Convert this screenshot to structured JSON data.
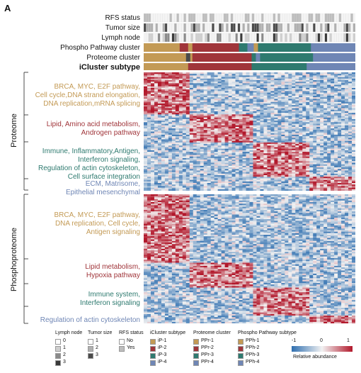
{
  "panel_letter": "A",
  "tracks": [
    {
      "label": "RFS status"
    },
    {
      "label": "Tumor size"
    },
    {
      "label": "Lymph  node"
    },
    {
      "label": "Phospho Pathway cluster"
    },
    {
      "label": "Proteome  cluster"
    },
    {
      "label": "iCluster  subtype"
    }
  ],
  "sections": {
    "proteome": "Proteome",
    "phosphoproteome": "Phosphoproteome"
  },
  "proteome_groups": [
    {
      "lines": [
        "BRCA, MYC, E2F pathway,",
        "Cell cycle,DNA strand elongation,",
        "DNA replication,mRNA splicing"
      ],
      "color": "#C39A55"
    },
    {
      "lines": [
        "Lipid, Amino acid metabolism,",
        "Androgen pathway"
      ],
      "color": "#A0353A"
    },
    {
      "lines": [
        "Immune, Inflammatory,Antigen,",
        "Interferon signaling,",
        "Regulation of actin cytoskeleton,",
        "Cell surface integration"
      ],
      "color": "#2E7A6F"
    },
    {
      "lines": [
        "ECM, Matrisome,",
        "Epithelial mesenchymal"
      ],
      "color": "#6F86B5"
    }
  ],
  "phospho_groups": [
    {
      "lines": [
        "BRCA, MYC, E2F pathway,",
        "DNA replication, Cell cycle,",
        "Antigen signaling"
      ],
      "color": "#C39A55"
    },
    {
      "lines": [
        "Lipid metabolism,",
        "Hypoxia pathway"
      ],
      "color": "#A0353A"
    },
    {
      "lines": [
        "Immune system,",
        "Interferon signaling"
      ],
      "color": "#2E7A6F"
    },
    {
      "lines": [
        "Regulation of actin cytoskeleton"
      ],
      "color": "#6F86B5"
    }
  ],
  "legend": {
    "lymph_node": {
      "title": "Lymph node",
      "items": [
        {
          "label": "0",
          "color": "#ffffff"
        },
        {
          "label": "1",
          "color": "#cfcfcf"
        },
        {
          "label": "2",
          "color": "#8a8a8a"
        },
        {
          "label": "3",
          "color": "#3a3a3a"
        }
      ]
    },
    "tumor_size": {
      "title": "Tumor size",
      "items": [
        {
          "label": "1",
          "color": "#ffffff"
        },
        {
          "label": "2",
          "color": "#b0b0b0"
        },
        {
          "label": "3",
          "color": "#4a4a4a"
        }
      ]
    },
    "rfs_status": {
      "title": "RFS status",
      "items": [
        {
          "label": "No",
          "color": "#ffffff"
        },
        {
          "label": "Yes",
          "color": "#bdbdbd"
        }
      ]
    },
    "icluster": {
      "title": "iCluster subtype",
      "items": [
        {
          "label": "iP-1",
          "color": "#C39A55"
        },
        {
          "label": "iP-2",
          "color": "#A0353A"
        },
        {
          "label": "iP-3",
          "color": "#2E7A6F"
        },
        {
          "label": "iP-4",
          "color": "#6F86B5"
        }
      ]
    },
    "proteome": {
      "title": "Proteome cluster",
      "items": [
        {
          "label": "PPr-1",
          "color": "#C39A55"
        },
        {
          "label": "PPr-2",
          "color": "#A0353A"
        },
        {
          "label": "PPr-3",
          "color": "#2E7A6F"
        },
        {
          "label": "PPr-4",
          "color": "#6F86B5"
        }
      ]
    },
    "phospho": {
      "title": "Phospho Pathway subtype",
      "items": [
        {
          "label": "PPh-1",
          "color": "#C39A55"
        },
        {
          "label": "PPh-2",
          "color": "#A0353A"
        },
        {
          "label": "PPh-3",
          "color": "#2E7A6F"
        },
        {
          "label": "PPh-4",
          "color": "#6F86B5"
        }
      ]
    },
    "scale": {
      "min": "-1",
      "mid": "0",
      "max": "1",
      "label": "Relative abundance",
      "low_color": "#2f6fb0",
      "mid_color": "#f2f2f2",
      "high_color": "#b2182b"
    }
  }
}
